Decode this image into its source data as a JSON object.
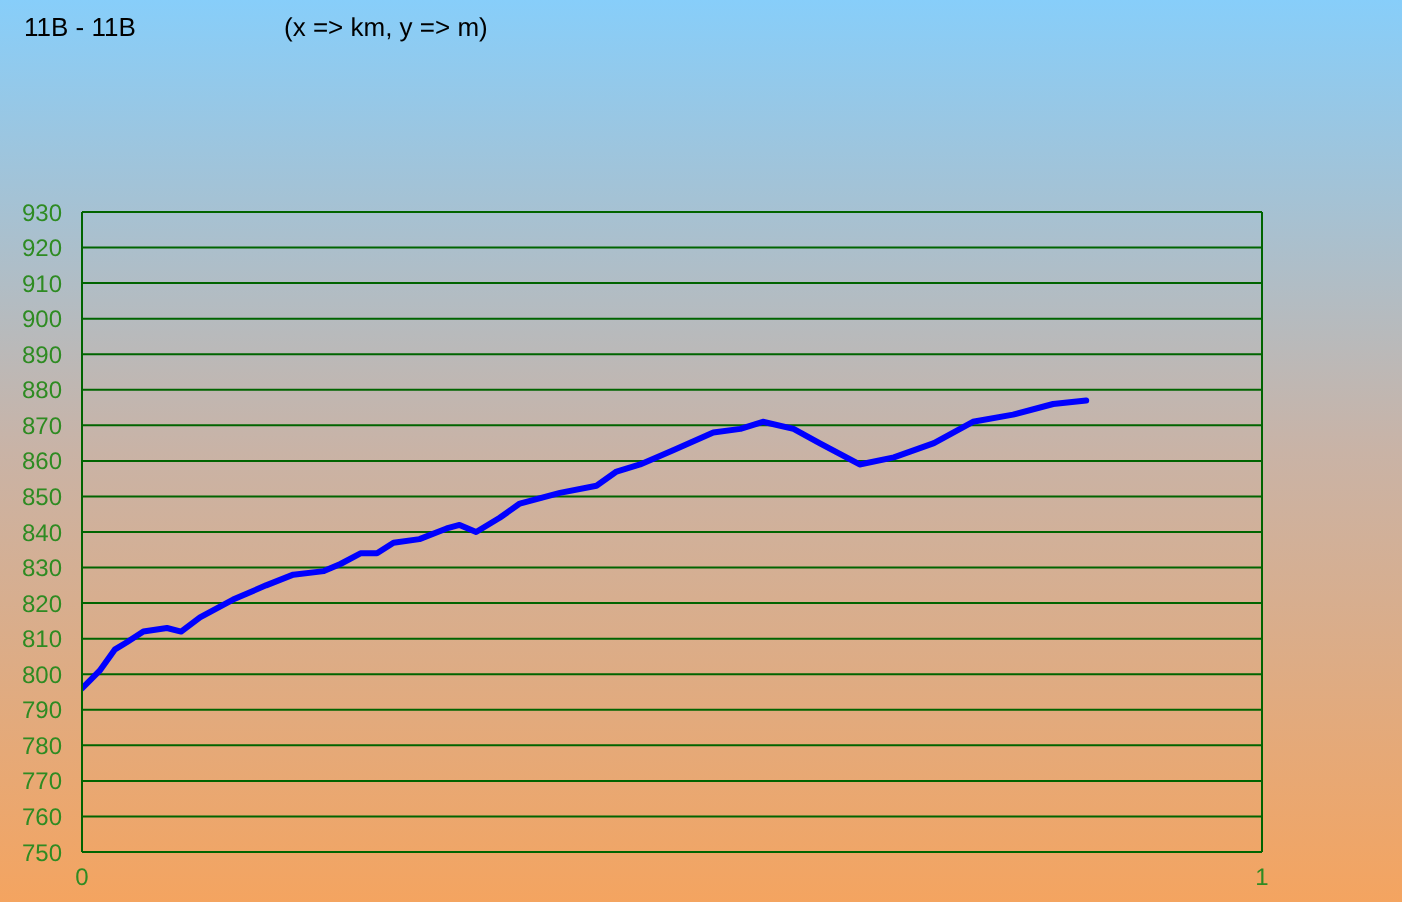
{
  "chart_data": {
    "type": "line",
    "title": "11B - 11B",
    "subtitle": "(x => km, y => m)",
    "x": [
      0,
      0.015,
      0.028,
      0.038,
      0.052,
      0.072,
      0.084,
      0.1,
      0.128,
      0.156,
      0.179,
      0.205,
      0.219,
      0.236,
      0.25,
      0.264,
      0.286,
      0.309,
      0.32,
      0.334,
      0.354,
      0.371,
      0.405,
      0.436,
      0.453,
      0.473,
      0.501,
      0.535,
      0.558,
      0.577,
      0.603,
      0.625,
      0.659,
      0.688,
      0.722,
      0.755,
      0.789,
      0.823,
      0.851
    ],
    "series": [
      {
        "color": "#0000ff",
        "values": [
          796,
          801,
          807,
          809,
          812,
          813,
          812,
          816,
          821,
          825,
          828,
          829,
          831,
          834,
          834,
          837,
          838,
          841,
          842,
          840,
          844,
          848,
          851,
          853,
          857,
          859,
          863,
          868,
          869,
          871,
          869,
          865,
          859,
          861,
          865,
          871,
          873,
          876,
          877
        ]
      }
    ],
    "xlim": [
      0,
      1
    ],
    "ylim": [
      750,
      930
    ],
    "xticks": [
      0,
      1
    ],
    "yticks": [
      750,
      760,
      770,
      780,
      790,
      800,
      810,
      820,
      830,
      840,
      850,
      860,
      870,
      880,
      890,
      900,
      910,
      920,
      930
    ],
    "grid": "y",
    "marker": "none",
    "line_style": "solid"
  }
}
